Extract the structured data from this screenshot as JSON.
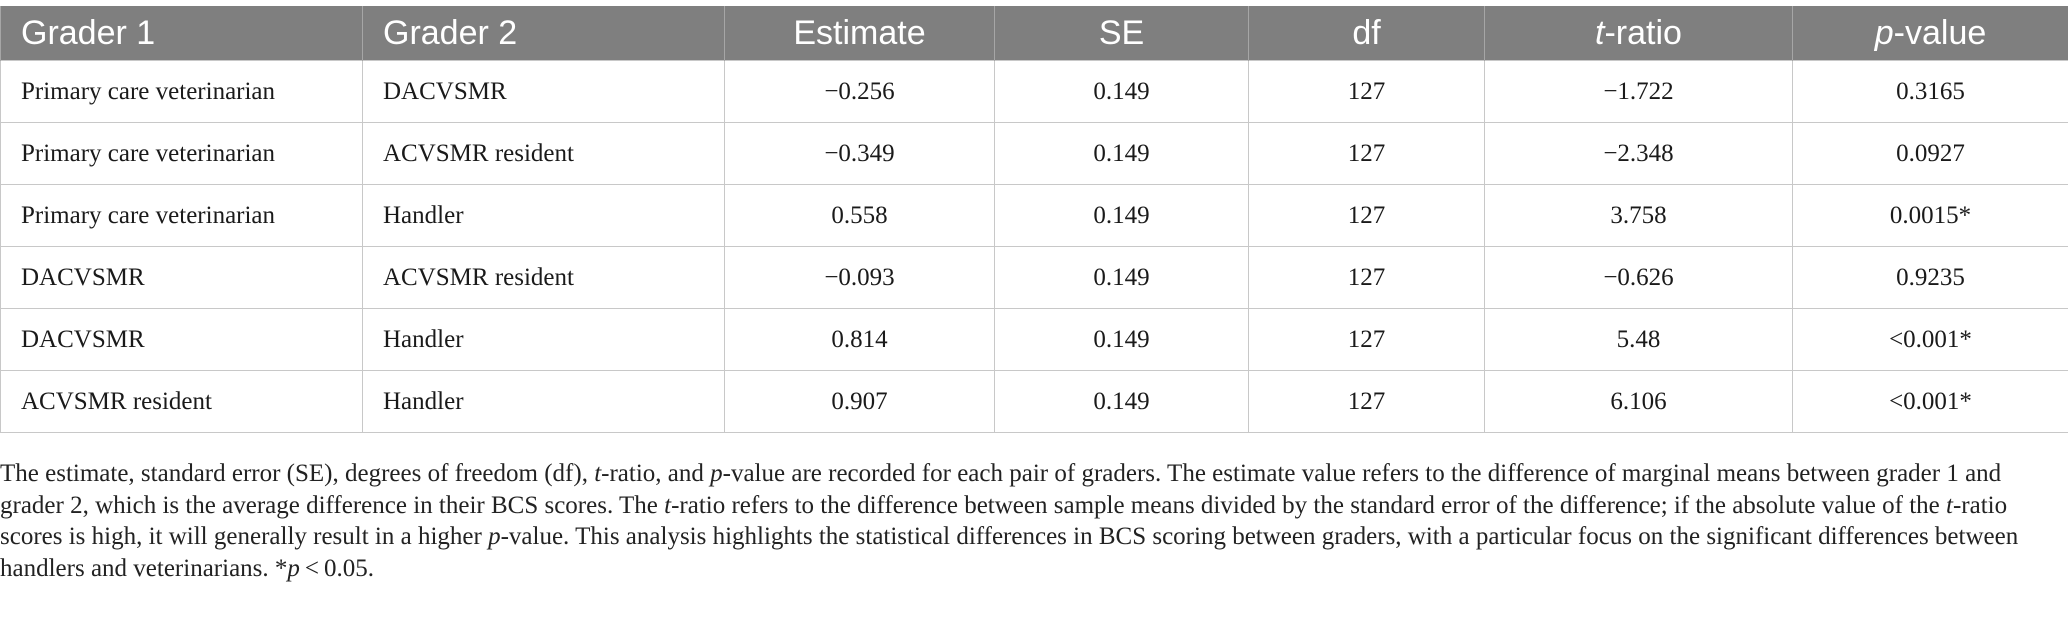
{
  "table": {
    "headers": [
      "Grader 1",
      "Grader 2",
      "Estimate",
      "SE",
      "df",
      "-ratio",
      "-value"
    ],
    "header_italic_prefix": {
      "t_ratio": "t",
      "p_value": "p"
    },
    "rows": [
      [
        "Primary care veterinarian",
        "DACVSMR",
        "−0.256",
        "0.149",
        "127",
        "−1.722",
        "0.3165"
      ],
      [
        "Primary care veterinarian",
        "ACVSMR resident",
        "−0.349",
        "0.149",
        "127",
        "−2.348",
        "0.0927"
      ],
      [
        "Primary care veterinarian",
        "Handler",
        "0.558",
        "0.149",
        "127",
        "3.758",
        "0.0015*"
      ],
      [
        "DACVSMR",
        "ACVSMR resident",
        "−0.093",
        "0.149",
        "127",
        "−0.626",
        "0.9235"
      ],
      [
        "DACVSMR",
        "Handler",
        "0.814",
        "0.149",
        "127",
        "5.48",
        "<0.001*"
      ],
      [
        "ACVSMR resident",
        "Handler",
        "0.907",
        "0.149",
        "127",
        "6.106",
        "<0.001*"
      ]
    ],
    "colors": {
      "header_bg": "#7f7f7f",
      "header_text": "#ffffff",
      "grid": "#c8c8c8"
    }
  },
  "footnote": {
    "seg1": "The estimate, standard error (SE), degrees of freedom (df), ",
    "t1": "t",
    "seg2": "-ratio, and ",
    "p1": "p",
    "seg3": "-value are recorded for each pair of graders. The estimate value refers to the difference of marginal means between grader 1 and grader 2, which is the average difference in their BCS scores. The ",
    "t2": "t",
    "seg4": "-ratio refers to the difference between sample means divided by the standard error of the difference; if the absolute value of the ",
    "t3": "t",
    "seg5": "-ratio scores is high, it will generally result in a higher ",
    "p2": "p",
    "seg6": "-value. This analysis highlights the statistical differences in BCS scoring between graders, with a particular focus on the significant differences between handlers and veterinarians. *",
    "p3": "p",
    "seg7": " < 0.05."
  }
}
